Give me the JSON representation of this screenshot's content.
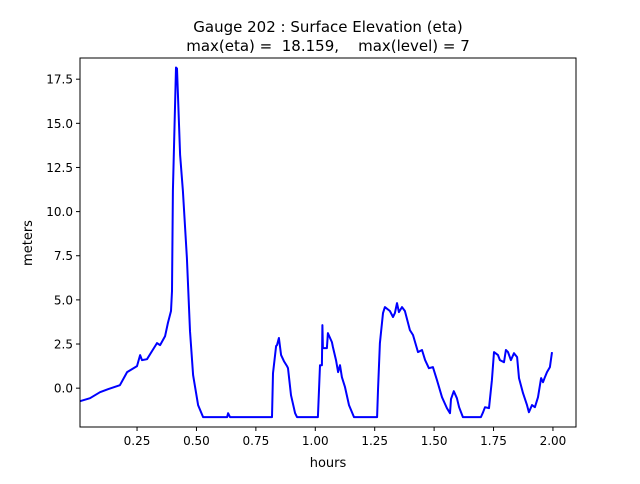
{
  "chart_data": {
    "type": "line",
    "title": "Gauge 202 : Surface Elevation (eta)",
    "subtitle": "max(eta) =  18.159,    max(level) = 7",
    "xlabel": "hours",
    "ylabel": "meters",
    "xlim": [
      0.01,
      2.097
    ],
    "ylim": [
      -2.2,
      18.7
    ],
    "xticks": [
      0.25,
      0.5,
      0.75,
      1.0,
      1.25,
      1.5,
      1.75,
      2.0
    ],
    "xtick_labels": [
      "0.25",
      "0.50",
      "0.75",
      "1.00",
      "1.25",
      "1.50",
      "1.75",
      "2.00"
    ],
    "yticks": [
      0,
      2.5,
      5,
      7.5,
      10,
      12.5,
      15,
      17.5
    ],
    "ytick_labels": [
      "0.0",
      "2.5",
      "5.0",
      "7.5",
      "10.0",
      "12.5",
      "15.0",
      "17.5"
    ],
    "grid": false,
    "series": [
      {
        "name": "eta",
        "color": "#0000ff",
        "x": [
          0.01,
          0.052,
          0.094,
          0.128,
          0.178,
          0.208,
          0.25,
          0.263,
          0.271,
          0.292,
          0.313,
          0.334,
          0.347,
          0.368,
          0.38,
          0.393,
          0.397,
          0.401,
          0.414,
          0.418,
          0.431,
          0.443,
          0.46,
          0.473,
          0.486,
          0.507,
          0.528,
          0.629,
          0.633,
          0.641,
          0.818,
          0.822,
          0.835,
          0.839,
          0.847,
          0.856,
          0.868,
          0.881,
          0.885,
          0.898,
          0.915,
          0.923,
          1.011,
          1.02,
          1.028,
          1.03,
          1.032,
          1.049,
          1.053,
          1.07,
          1.074,
          1.087,
          1.096,
          1.104,
          1.112,
          1.125,
          1.142,
          1.163,
          1.26,
          1.264,
          1.272,
          1.285,
          1.293,
          1.314,
          1.327,
          1.335,
          1.344,
          1.352,
          1.365,
          1.377,
          1.398,
          1.411,
          1.432,
          1.449,
          1.462,
          1.478,
          1.495,
          1.512,
          1.533,
          1.554,
          1.567,
          1.571,
          1.583,
          1.596,
          1.605,
          1.621,
          1.697,
          1.706,
          1.714,
          1.731,
          1.743,
          1.752,
          1.769,
          1.777,
          1.794,
          1.802,
          1.811,
          1.823,
          1.836,
          1.849,
          1.857,
          1.874,
          1.891,
          1.899,
          1.912,
          1.924,
          1.937,
          1.95,
          1.958,
          1.966,
          1.975,
          1.987,
          1.996
        ],
        "y": [
          -0.74,
          -0.57,
          -0.23,
          -0.06,
          0.17,
          0.91,
          1.25,
          1.87,
          1.59,
          1.64,
          2.1,
          2.55,
          2.44,
          2.95,
          3.69,
          4.37,
          5.5,
          11.17,
          18.16,
          18.1,
          13.22,
          11.17,
          7.37,
          3.23,
          0.74,
          -0.96,
          -1.64,
          -1.64,
          -1.42,
          -1.64,
          -1.64,
          0.85,
          2.38,
          2.44,
          2.84,
          1.87,
          1.53,
          1.25,
          1.13,
          -0.4,
          -1.42,
          -1.64,
          -1.64,
          1.3,
          1.3,
          3.57,
          2.27,
          2.27,
          3.12,
          2.61,
          2.33,
          1.59,
          0.91,
          1.3,
          0.62,
          0.06,
          -0.96,
          -1.64,
          -1.64,
          -0.11,
          2.55,
          4.25,
          4.59,
          4.37,
          4.03,
          4.25,
          4.82,
          4.31,
          4.59,
          4.37,
          3.29,
          3.01,
          2.04,
          2.16,
          1.59,
          1.13,
          1.19,
          0.45,
          -0.51,
          -1.13,
          -1.42,
          -0.62,
          -0.17,
          -0.57,
          -1.08,
          -1.64,
          -1.64,
          -1.36,
          -1.08,
          -1.13,
          0.45,
          2.04,
          1.87,
          1.59,
          1.47,
          2.16,
          2.04,
          1.59,
          1.98,
          1.76,
          0.57,
          -0.28,
          -0.96,
          -1.36,
          -0.96,
          -1.08,
          -0.51,
          0.57,
          0.34,
          0.62,
          0.91,
          1.19,
          2.04
        ]
      }
    ]
  }
}
